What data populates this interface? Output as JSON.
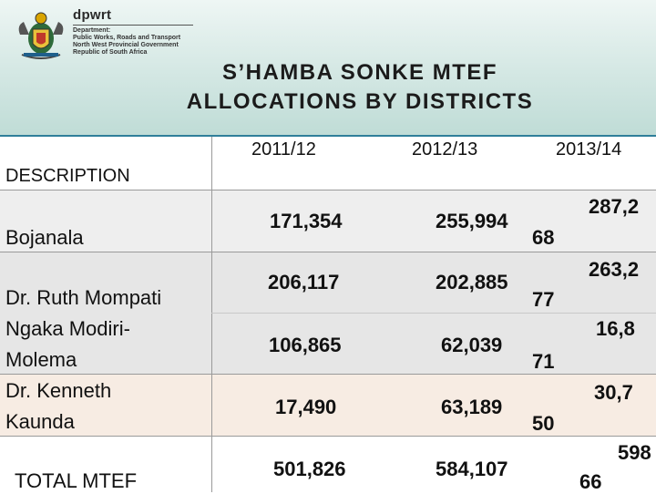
{
  "header": {
    "brand": "dpwrt",
    "department_lines": [
      "Department:",
      "Public Works, Roads and Transport",
      "North West Provincial Government",
      "Republic of South Africa"
    ],
    "title_line1": "S’HAMBA SONKE MTEF",
    "title_line2": "ALLOCATIONS  BY DISTRICTS"
  },
  "table": {
    "description_header": "DESCRIPTION",
    "year_headers": [
      "2011/12",
      "2012/13",
      "2013/14"
    ],
    "rows": [
      {
        "label": "Bojanala",
        "v2011": "171,354",
        "v2012": "255,994",
        "v2013_a": "287,2",
        "v2013_b": "68"
      },
      {
        "label": "Dr. Ruth Mompati",
        "v2011": "206,117",
        "v2012": "202,885",
        "v2013_a": "263,2",
        "v2013_b": "77"
      },
      {
        "label": "Ngaka Modiri-",
        "v2011": "106,865",
        "v2012": "62,039",
        "v2013_a": "16,8",
        "v2013_b": "71"
      },
      {
        "label": "Molema",
        "v2011": "",
        "v2012": "",
        "v2013_a": "",
        "v2013_b": ""
      },
      {
        "label": "Dr. Kenneth",
        "v2011": "17,490",
        "v2012": "63,189",
        "v2013_a": "30,7",
        "v2013_b": "50"
      },
      {
        "label": "Kaunda",
        "v2011": "",
        "v2012": "",
        "v2013_a": "",
        "v2013_b": ""
      }
    ],
    "total": {
      "label": "TOTAL MTEF",
      "v2011": "501,826",
      "v2012": "584,107",
      "v2013_a": "598",
      "v2013_b": "66"
    }
  }
}
